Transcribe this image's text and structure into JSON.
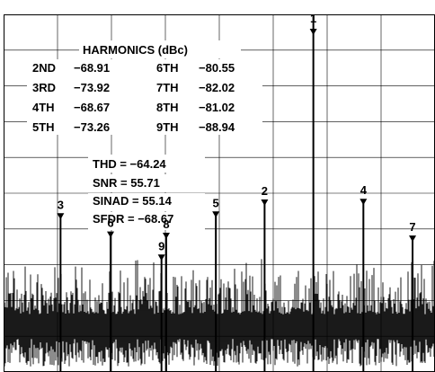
{
  "chart_data": {
    "type": "spectrum",
    "xlabel": "",
    "ylabel": "",
    "grid": true,
    "x_divisions": 8,
    "y_divisions": 10,
    "ylim_dbc": [
      -130,
      0
    ],
    "fundamental": {
      "label": "1",
      "x_frac": 0.718,
      "dbc": 0
    },
    "harmonic_markers": [
      {
        "label": "2",
        "x_frac": 0.605,
        "dbc": -68.91
      },
      {
        "label": "3",
        "x_frac": 0.132,
        "dbc": -73.92
      },
      {
        "label": "4",
        "x_frac": 0.834,
        "dbc": -68.67
      },
      {
        "label": "5",
        "x_frac": 0.492,
        "dbc": -73.26
      },
      {
        "label": "6",
        "x_frac": 0.248,
        "dbc": -80.55
      },
      {
        "label": "7",
        "x_frac": 0.948,
        "dbc": -82.02
      },
      {
        "label": "8",
        "x_frac": 0.377,
        "dbc": -81.02
      },
      {
        "label": "9",
        "x_frac": 0.366,
        "dbc": -88.94
      }
    ],
    "noise_floor_dbc": [
      -105,
      -112
    ],
    "harmonics_table": {
      "title": "HARMONICS (dBc)",
      "rows": [
        {
          "h1": "2ND",
          "v1": "−68.91",
          "h2": "6TH",
          "v2": "−80.55"
        },
        {
          "h1": "3RD",
          "v1": "−73.92",
          "h2": "7TH",
          "v2": "−82.02"
        },
        {
          "h1": "4TH",
          "v1": "−68.67",
          "h2": "8TH",
          "v2": "−81.02"
        },
        {
          "h1": "5TH",
          "v1": "−73.26",
          "h2": "9TH",
          "v2": "−88.94"
        }
      ]
    },
    "metrics": [
      "THD = −64.24",
      "SNR = 55.71",
      "SINAD = 55.14",
      "SFDR = −68.67"
    ]
  }
}
